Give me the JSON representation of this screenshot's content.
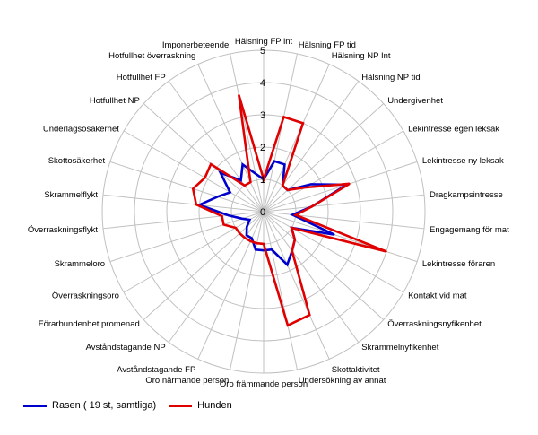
{
  "chart_data": {
    "type": "radar",
    "rmin": 0,
    "rmax": 5,
    "ticks": [
      0,
      1,
      2,
      3,
      4,
      5
    ],
    "grid": true,
    "legend_position": "bottom-left",
    "categories": [
      "Hälsning FP int",
      "Hälsning FP tid",
      "Hälsning NP Int",
      "Hälsning NP tid",
      "Undergivenhet",
      "Lekintresse egen leksak",
      "Lekintresse ny leksak",
      "Dragkampsintresse",
      "Engagemang för mat",
      "Lekintresse föraren",
      "Kontakt vid mat",
      "Överraskningsnyfikenhet",
      "Skrammelnyfikenhet",
      "Skottaktivitet",
      "Undersökning av annat",
      "Oro främmande person",
      "Oro närmande person",
      "Avståndstagande FP",
      "Avståndstagande NP",
      "Förarbundenhet promenad",
      "Överraskningsoro",
      "Skrammeloro",
      "Överraskningsflykt",
      "Skrammelflykt",
      "Skottosäkerhet",
      "Underlagsosäkerhet",
      "Hotfullhet NP",
      "Hotfullhet FP",
      "Hotfullhet överraskning",
      "Imponerbeteende"
    ],
    "series": [
      {
        "name": "Rasen ( 19 st, samtliga)",
        "color": "#0000cc",
        "values": [
          1.0,
          1.6,
          1.6,
          1.0,
          1.0,
          1.7,
          2.7,
          1.5,
          0.9,
          2.3,
          1.0,
          1.3,
          1.5,
          1.8,
          1.2,
          1.2,
          1.2,
          0.9,
          0.9,
          0.7,
          0.5,
          0.7,
          1.1,
          2.0,
          1.5,
          1.2,
          1.8,
          1.2,
          1.6,
          1.2
        ]
      },
      {
        "name": "Hunden",
        "color": "#e00000",
        "values": [
          1.0,
          3.0,
          3.0,
          1.0,
          1.0,
          1.5,
          2.8,
          1.5,
          1.0,
          4.0,
          1.0,
          1.3,
          1.5,
          3.5,
          3.6,
          1.0,
          1.0,
          1.0,
          1.0,
          1.0,
          1.0,
          1.3,
          1.3,
          2.1,
          2.3,
          2.1,
          2.2,
          1.0,
          1.0,
          3.7
        ]
      }
    ]
  }
}
